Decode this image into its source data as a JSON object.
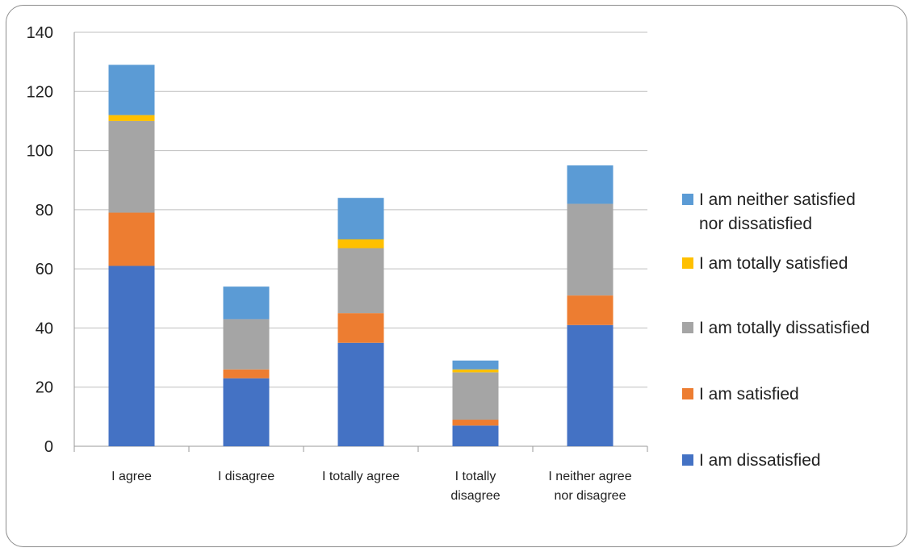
{
  "chart_data": {
    "type": "bar",
    "stacked": true,
    "categories": [
      [
        "I agree"
      ],
      [
        "I disagree"
      ],
      [
        "I totally agree"
      ],
      [
        "I totally",
        "disagree"
      ],
      [
        "I neither agree",
        "nor disagree"
      ]
    ],
    "ylim": [
      0,
      140
    ],
    "yticks": [
      "0",
      "20",
      "40",
      "60",
      "80",
      "100",
      "120",
      "140"
    ],
    "grid": true,
    "legend_position": "right",
    "series": [
      {
        "name": "I am dissatisfied",
        "legend_lines": [
          "I am dissatisfied"
        ],
        "color": "#4472C4",
        "values": [
          61,
          23,
          35,
          7,
          41
        ]
      },
      {
        "name": "I am satisfied",
        "legend_lines": [
          "I am satisfied"
        ],
        "color": "#ED7D31",
        "values": [
          18,
          3,
          10,
          2,
          10
        ]
      },
      {
        "name": "I am totally dissatisfied",
        "legend_lines": [
          "I am totally dissatisfied"
        ],
        "color": "#A5A5A5",
        "values": [
          31,
          17,
          22,
          16,
          31
        ]
      },
      {
        "name": "I am totally satisfied",
        "legend_lines": [
          "I am totally satisfied"
        ],
        "color": "#FFC000",
        "values": [
          2,
          0,
          3,
          1,
          0
        ]
      },
      {
        "name": "I am neither satisfied nor dissatisfied",
        "legend_lines": [
          "I am neither satisfied",
          "nor dissatisfied"
        ],
        "color": "#5B9BD5",
        "values": [
          17,
          11,
          14,
          3,
          13
        ]
      }
    ]
  }
}
